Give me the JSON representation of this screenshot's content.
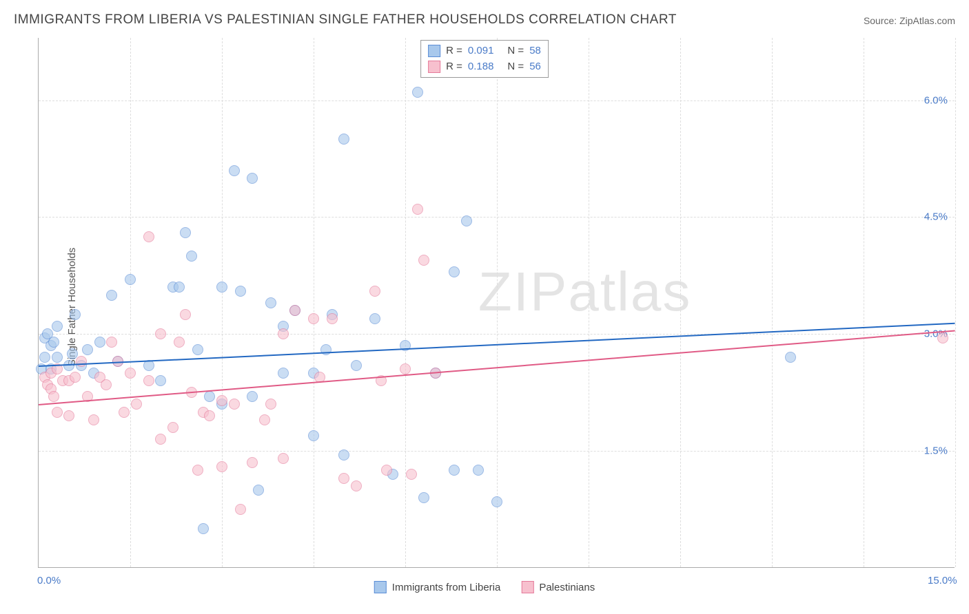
{
  "chart": {
    "type": "scatter",
    "title": "IMMIGRANTS FROM LIBERIA VS PALESTINIAN SINGLE FATHER HOUSEHOLDS CORRELATION CHART",
    "source": "Source: ZipAtlas.com",
    "watermark": "ZIPatlas",
    "y_axis_label": "Single Father Households",
    "background_color": "#ffffff",
    "grid_color": "#dddddd",
    "axis_color": "#aaaaaa",
    "tick_label_color": "#4a7bc8",
    "title_color": "#444444",
    "title_fontsize": 19,
    "label_fontsize": 15,
    "xlim": [
      0,
      15
    ],
    "ylim": [
      0,
      6.8
    ],
    "x_ticks": [
      0.0,
      15.0
    ],
    "x_tick_labels": [
      "0.0%",
      "15.0%"
    ],
    "x_gridlines": [
      1.5,
      3.0,
      4.5,
      6.0,
      7.5,
      9.0,
      10.5,
      12.0,
      13.5,
      15.0
    ],
    "y_ticks": [
      1.5,
      3.0,
      4.5,
      6.0
    ],
    "y_tick_labels": [
      "1.5%",
      "3.0%",
      "4.5%",
      "6.0%"
    ],
    "marker_radius": 8,
    "marker_opacity": 0.6,
    "series": [
      {
        "name": "Immigrants from Liberia",
        "fill_color": "#a8c8ec",
        "stroke_color": "#5b8dd6",
        "line_color": "#2268c2",
        "r": "0.091",
        "n": "58",
        "trend": {
          "x1": 0,
          "y1": 2.6,
          "x2": 15,
          "y2": 3.15
        },
        "points": [
          [
            0.05,
            2.55
          ],
          [
            0.1,
            2.7
          ],
          [
            0.1,
            2.95
          ],
          [
            0.15,
            3.0
          ],
          [
            0.2,
            2.85
          ],
          [
            0.2,
            2.55
          ],
          [
            0.25,
            2.9
          ],
          [
            0.3,
            2.7
          ],
          [
            0.3,
            3.1
          ],
          [
            0.5,
            2.6
          ],
          [
            0.55,
            2.75
          ],
          [
            0.6,
            3.25
          ],
          [
            0.7,
            2.6
          ],
          [
            0.8,
            2.8
          ],
          [
            0.9,
            2.5
          ],
          [
            1.0,
            2.9
          ],
          [
            1.2,
            3.5
          ],
          [
            1.3,
            2.65
          ],
          [
            1.5,
            3.7
          ],
          [
            1.8,
            2.6
          ],
          [
            2.0,
            2.4
          ],
          [
            2.2,
            3.6
          ],
          [
            2.3,
            3.6
          ],
          [
            2.4,
            4.3
          ],
          [
            2.5,
            4.0
          ],
          [
            2.6,
            2.8
          ],
          [
            2.7,
            0.5
          ],
          [
            2.8,
            2.2
          ],
          [
            3.0,
            3.6
          ],
          [
            3.0,
            2.1
          ],
          [
            3.2,
            5.1
          ],
          [
            3.3,
            3.55
          ],
          [
            3.5,
            5.0
          ],
          [
            3.5,
            2.2
          ],
          [
            3.6,
            1.0
          ],
          [
            3.8,
            3.4
          ],
          [
            4.0,
            3.1
          ],
          [
            4.0,
            2.5
          ],
          [
            4.2,
            3.3
          ],
          [
            4.5,
            2.5
          ],
          [
            4.5,
            1.7
          ],
          [
            4.7,
            2.8
          ],
          [
            4.8,
            3.25
          ],
          [
            5.0,
            5.5
          ],
          [
            5.0,
            1.45
          ],
          [
            5.2,
            2.6
          ],
          [
            5.5,
            3.2
          ],
          [
            5.8,
            1.2
          ],
          [
            6.0,
            2.85
          ],
          [
            6.2,
            6.1
          ],
          [
            6.3,
            0.9
          ],
          [
            6.5,
            2.5
          ],
          [
            6.8,
            3.8
          ],
          [
            7.0,
            4.45
          ],
          [
            7.2,
            1.25
          ],
          [
            7.5,
            0.85
          ],
          [
            12.3,
            2.7
          ],
          [
            6.8,
            1.25
          ]
        ]
      },
      {
        "name": "Palestinians",
        "fill_color": "#f7c0ce",
        "stroke_color": "#e57a9a",
        "line_color": "#e05a85",
        "r": "0.188",
        "n": "56",
        "trend": {
          "x1": 0,
          "y1": 2.1,
          "x2": 15,
          "y2": 3.05
        },
        "points": [
          [
            0.1,
            2.45
          ],
          [
            0.15,
            2.35
          ],
          [
            0.2,
            2.5
          ],
          [
            0.2,
            2.3
          ],
          [
            0.25,
            2.2
          ],
          [
            0.3,
            2.55
          ],
          [
            0.3,
            2.0
          ],
          [
            0.4,
            2.4
          ],
          [
            0.5,
            1.95
          ],
          [
            0.5,
            2.4
          ],
          [
            0.6,
            2.45
          ],
          [
            0.7,
            2.65
          ],
          [
            0.8,
            2.2
          ],
          [
            0.9,
            1.9
          ],
          [
            1.0,
            2.45
          ],
          [
            1.1,
            2.35
          ],
          [
            1.2,
            2.9
          ],
          [
            1.3,
            2.65
          ],
          [
            1.4,
            2.0
          ],
          [
            1.5,
            2.5
          ],
          [
            1.6,
            2.1
          ],
          [
            1.8,
            2.4
          ],
          [
            1.8,
            4.25
          ],
          [
            2.0,
            3.0
          ],
          [
            2.0,
            1.65
          ],
          [
            2.2,
            1.8
          ],
          [
            2.3,
            2.9
          ],
          [
            2.4,
            3.25
          ],
          [
            2.5,
            2.25
          ],
          [
            2.6,
            1.25
          ],
          [
            2.7,
            2.0
          ],
          [
            2.8,
            1.95
          ],
          [
            3.0,
            2.15
          ],
          [
            3.0,
            1.3
          ],
          [
            3.2,
            2.1
          ],
          [
            3.3,
            0.75
          ],
          [
            3.5,
            1.35
          ],
          [
            3.7,
            1.9
          ],
          [
            3.8,
            2.1
          ],
          [
            4.0,
            1.4
          ],
          [
            4.2,
            3.3
          ],
          [
            4.5,
            3.2
          ],
          [
            4.6,
            2.45
          ],
          [
            4.8,
            3.2
          ],
          [
            5.0,
            1.15
          ],
          [
            5.2,
            1.05
          ],
          [
            5.5,
            3.55
          ],
          [
            5.6,
            2.4
          ],
          [
            5.7,
            1.25
          ],
          [
            6.0,
            2.55
          ],
          [
            6.1,
            1.2
          ],
          [
            6.2,
            4.6
          ],
          [
            6.3,
            3.95
          ],
          [
            6.5,
            2.5
          ],
          [
            14.8,
            2.95
          ],
          [
            4.0,
            3.0
          ]
        ]
      }
    ],
    "legend_bottom": [
      {
        "label": "Immigrants from Liberia",
        "fill": "#a8c8ec",
        "stroke": "#5b8dd6"
      },
      {
        "label": "Palestinians",
        "fill": "#f7c0ce",
        "stroke": "#e57a9a"
      }
    ]
  }
}
